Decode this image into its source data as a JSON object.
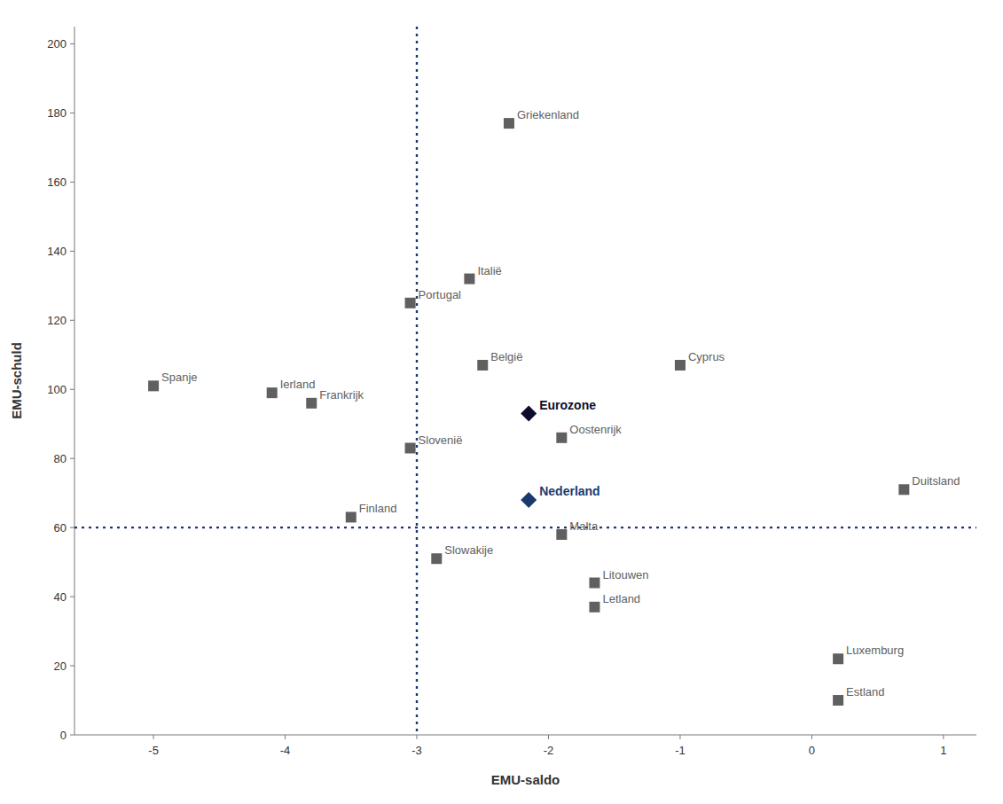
{
  "chart_data": {
    "type": "scatter",
    "xlabel": "EMU-saldo",
    "ylabel": "EMU-schuld",
    "xlim": [
      -5.6,
      1.25
    ],
    "ylim": [
      0,
      205
    ],
    "xticks": [
      -5,
      -4,
      -3,
      -2,
      -1,
      0,
      1
    ],
    "yticks": [
      0,
      20,
      40,
      60,
      80,
      100,
      120,
      140,
      160,
      180,
      200
    ],
    "grid": false,
    "series": [
      {
        "marker": "square",
        "color": "#606060",
        "x": [
          -2.3,
          -2.6,
          -3.05,
          -2.5,
          -1.0,
          -4.1,
          -5.0,
          -3.8,
          -3.05,
          -1.9,
          -3.5,
          -1.9,
          -2.85,
          -1.65,
          -1.65,
          0.7,
          0.2,
          0.2
        ],
        "values": [
          177,
          132,
          125,
          107,
          107,
          99,
          101,
          96,
          83,
          86,
          63,
          58,
          51,
          44,
          37,
          71,
          22,
          10
        ],
        "labels": [
          "Griekenland",
          "Italië",
          "Portugal",
          "België",
          "Cyprus",
          "Ierland",
          "Spanje",
          "Frankrijk",
          "Slovenië",
          "Oostenrijk",
          "Finland",
          "Malta",
          "Slowakije",
          "Litouwen",
          "Letland",
          "Duitsland",
          "Luxemburg",
          "Estland"
        ]
      },
      {
        "marker": "diamond",
        "color": "#0d0d2b",
        "x": [
          -2.15
        ],
        "values": [
          93
        ],
        "labels": [
          "Eurozone"
        ]
      },
      {
        "marker": "diamond",
        "color": "#1a3a6e",
        "x": [
          -2.15
        ],
        "values": [
          68
        ],
        "labels": [
          "Nederland"
        ]
      }
    ],
    "reference_lines": [
      {
        "axis": "x",
        "value": -3,
        "color": "#1a3a6e",
        "line_style": "dotted"
      },
      {
        "axis": "y",
        "value": 60,
        "color": "#1a3a6e",
        "line_style": "dotted"
      }
    ]
  }
}
